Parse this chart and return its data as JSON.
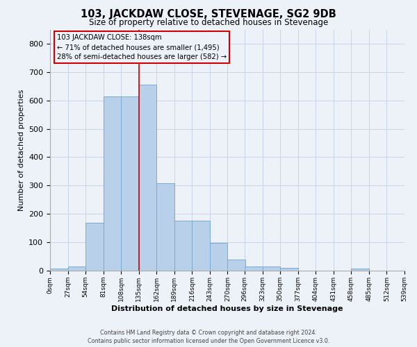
{
  "title": "103, JACKDAW CLOSE, STEVENAGE, SG2 9DB",
  "subtitle": "Size of property relative to detached houses in Stevenage",
  "xlabel": "Distribution of detached houses by size in Stevenage",
  "ylabel": "Number of detached properties",
  "footer_line1": "Contains HM Land Registry data © Crown copyright and database right 2024.",
  "footer_line2": "Contains public sector information licensed under the Open Government Licence v3.0.",
  "annotation_line1": "103 JACKDAW CLOSE: 138sqm",
  "annotation_line2": "← 71% of detached houses are smaller (1,495)",
  "annotation_line3": "28% of semi-detached houses are larger (582) →",
  "bin_width": 27,
  "bin_starts": [
    0,
    27,
    54,
    81,
    108,
    135,
    162,
    189,
    216,
    243,
    270,
    296,
    323,
    350,
    377,
    404,
    431,
    458,
    485,
    512
  ],
  "bar_heights": [
    8,
    14,
    170,
    615,
    615,
    655,
    308,
    175,
    175,
    97,
    40,
    15,
    15,
    10,
    0,
    0,
    0,
    8,
    0,
    0
  ],
  "bar_color": "#b8d0ea",
  "bar_edge_color": "#7aaad0",
  "vline_color": "#cc0000",
  "vline_x": 135,
  "annotation_box_color": "#cc0000",
  "grid_color": "#c8d4e8",
  "background_color": "#edf2f9",
  "ylim": [
    0,
    850
  ],
  "yticks": [
    0,
    100,
    200,
    300,
    400,
    500,
    600,
    700,
    800
  ]
}
